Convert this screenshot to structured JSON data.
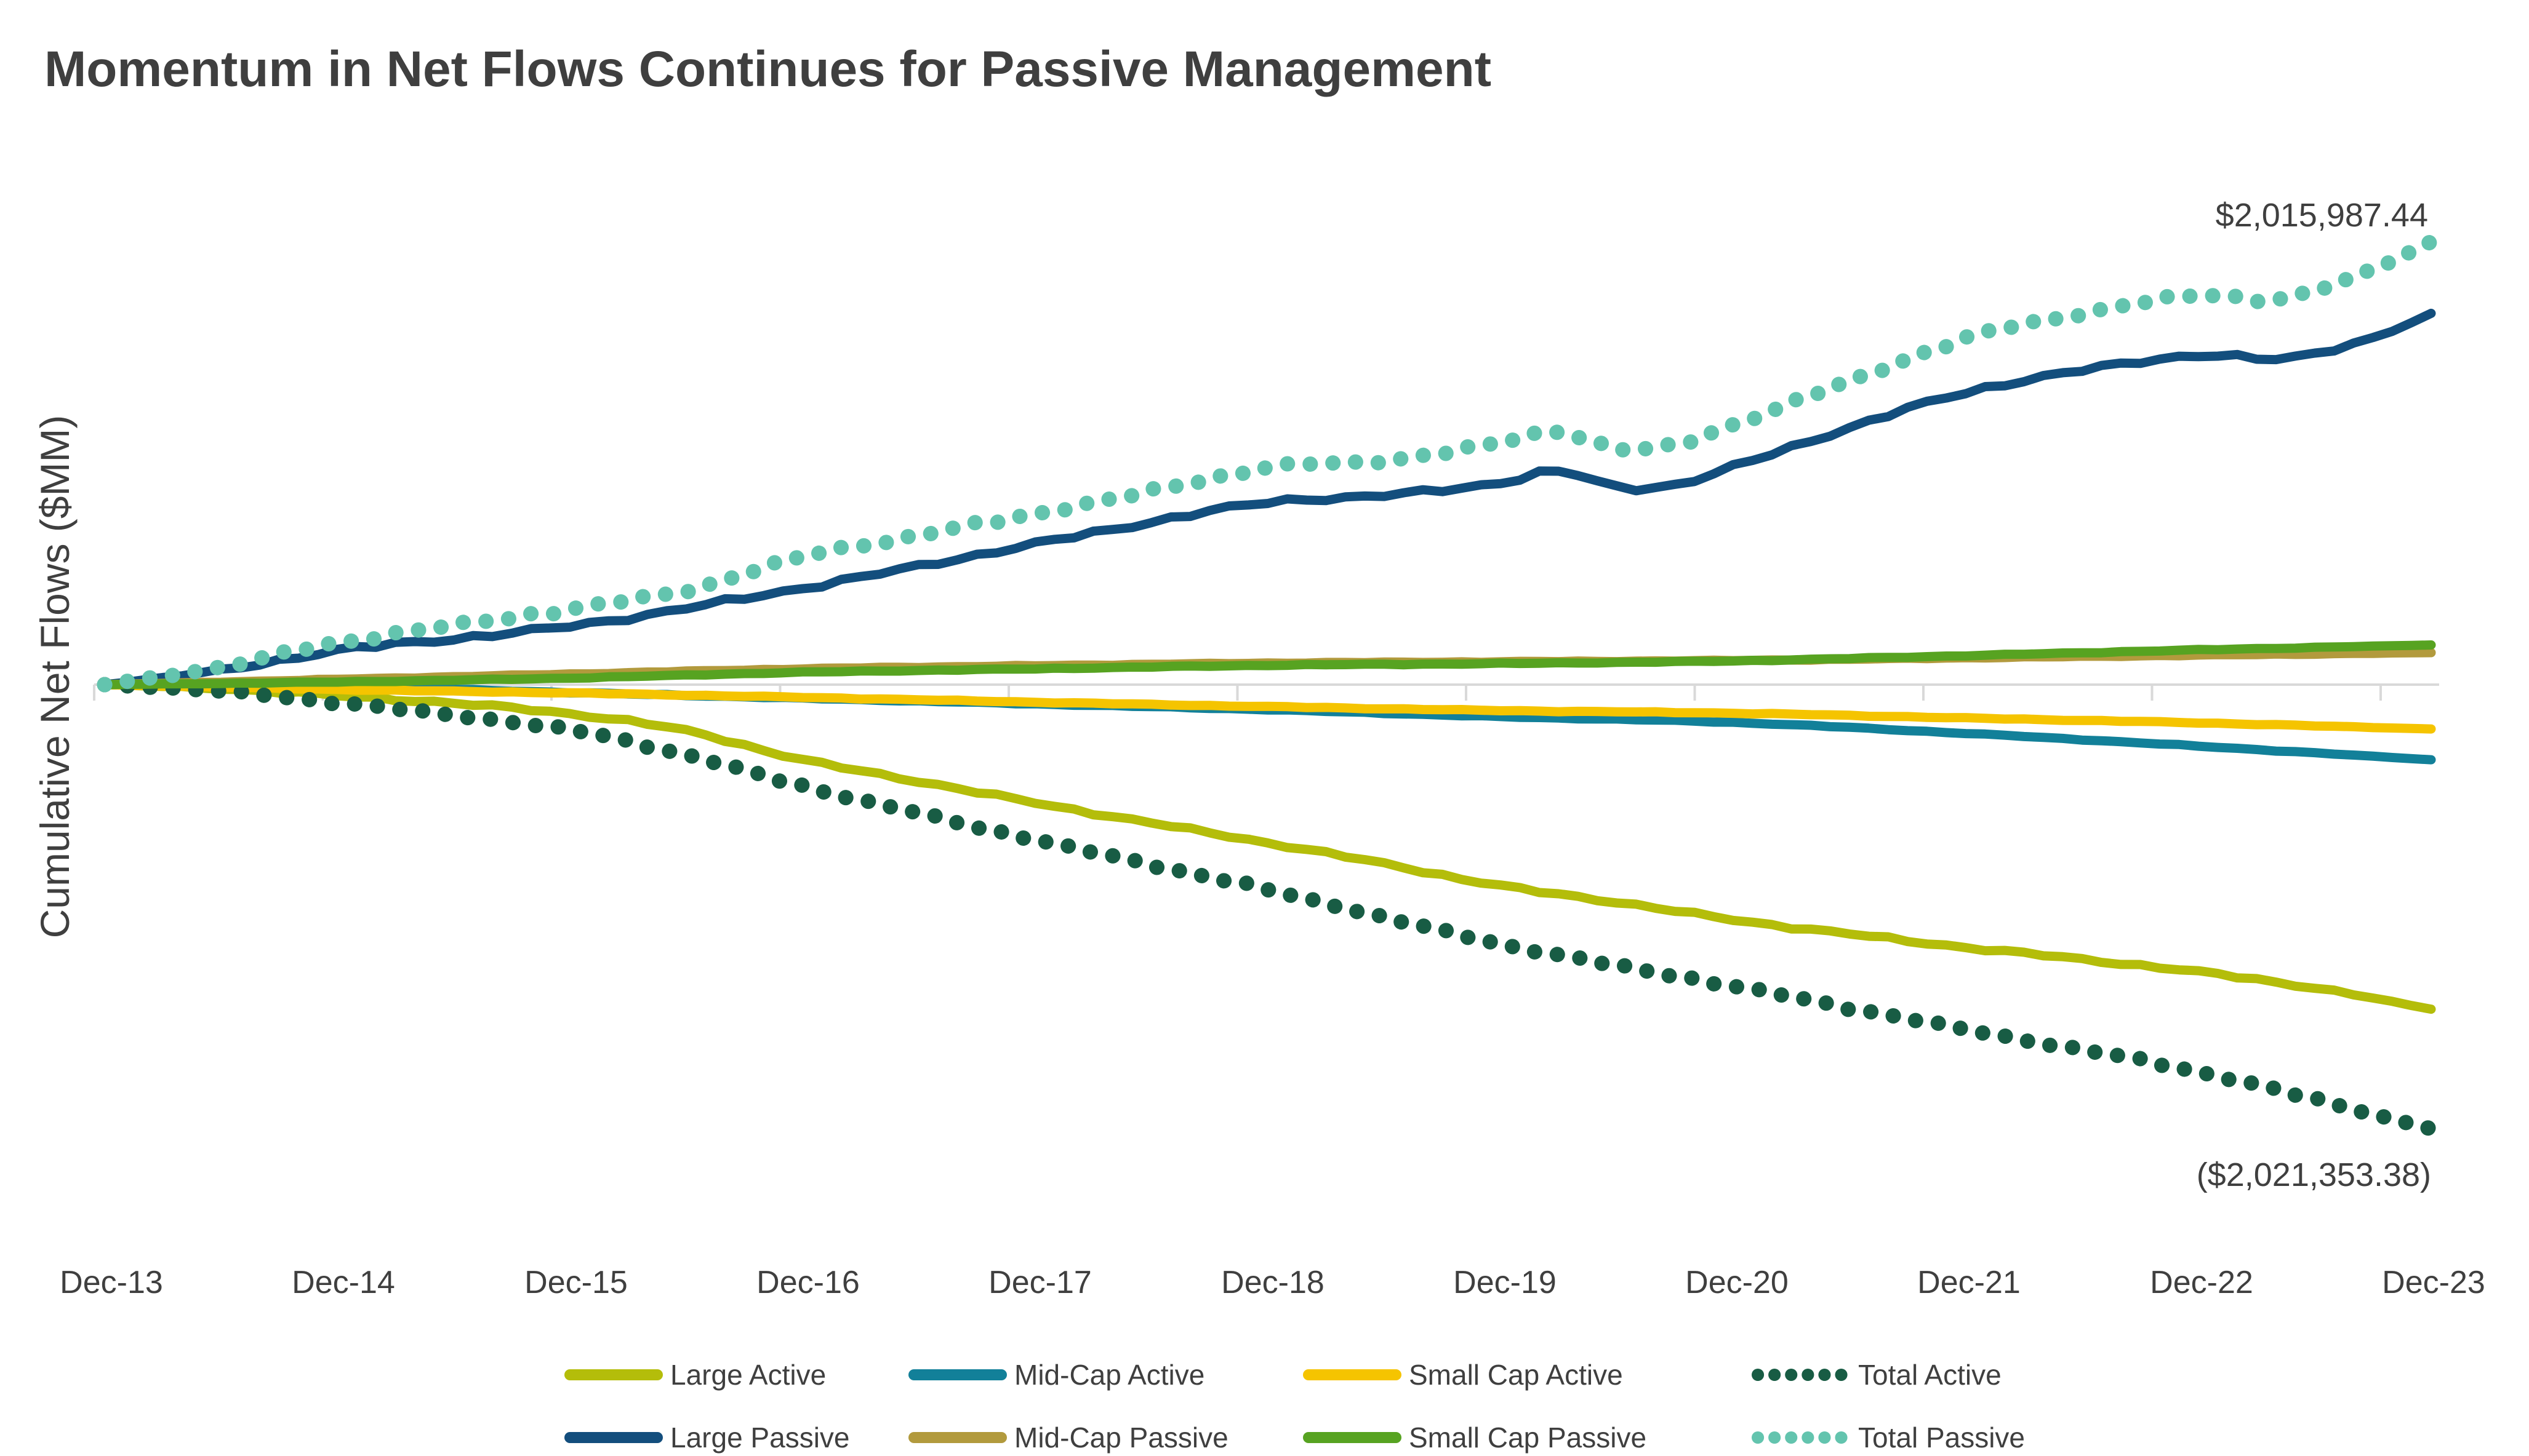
{
  "title": "Momentum in Net Flows Continues for Passive Management",
  "y_axis_label": "Cumulative Net Flows ($MM)",
  "chart_data": {
    "type": "line",
    "title": "Momentum in Net Flows Continues for Passive Management",
    "ylabel": "Cumulative Net Flows ($MM)",
    "xlabel": "",
    "x_unit": "months since Dec-13",
    "x_tick_labels": [
      "Dec-13",
      "Dec-14",
      "Dec-15",
      "Dec-16",
      "Dec-17",
      "Dec-18",
      "Dec-19",
      "Dec-20",
      "Dec-21",
      "Dec-22",
      "Dec-23"
    ],
    "ylim_mm": [
      -2250000,
      2250000
    ],
    "grid": "zero-line-only",
    "legend_position": "bottom",
    "axis_color": "#d9d9d9",
    "text_color": "#3f3f3f",
    "annotations": {
      "top": "$2,015,987.44",
      "bottom": "($2,021,353.38)"
    },
    "series": [
      {
        "name": "Large Active",
        "color": "#b4bd0a",
        "style": "solid",
        "final_value_mm": -1477353.38,
        "wiggle": 9000,
        "anchors_month_value_mm": [
          [
            0,
            0
          ],
          [
            6,
            -18000
          ],
          [
            12,
            -50000
          ],
          [
            18,
            -85000
          ],
          [
            24,
            -132000
          ],
          [
            30,
            -210000
          ],
          [
            36,
            -342000
          ],
          [
            42,
            -440000
          ],
          [
            48,
            -538000
          ],
          [
            54,
            -630000
          ],
          [
            60,
            -720000
          ],
          [
            66,
            -815000
          ],
          [
            72,
            -916000
          ],
          [
            78,
            -990000
          ],
          [
            84,
            -1070000
          ],
          [
            90,
            -1135000
          ],
          [
            96,
            -1196000
          ],
          [
            102,
            -1250000
          ],
          [
            108,
            -1308000
          ],
          [
            114,
            -1380000
          ],
          [
            120,
            -1477353.38
          ]
        ]
      },
      {
        "name": "Mid-Cap Active",
        "color": "#128099",
        "style": "solid",
        "final_value_mm": -342000,
        "wiggle": 2500,
        "anchors_month_value_mm": [
          [
            0,
            0
          ],
          [
            12,
            -10000
          ],
          [
            24,
            -36000
          ],
          [
            36,
            -62000
          ],
          [
            48,
            -88000
          ],
          [
            60,
            -114000
          ],
          [
            72,
            -146000
          ],
          [
            84,
            -172000
          ],
          [
            96,
            -222000
          ],
          [
            108,
            -280000
          ],
          [
            120,
            -342000
          ]
        ]
      },
      {
        "name": "Small Cap Active",
        "color": "#f5c400",
        "style": "solid",
        "final_value_mm": -202000,
        "wiggle": 2500,
        "anchors_month_value_mm": [
          [
            0,
            0
          ],
          [
            12,
            -22000
          ],
          [
            24,
            -38000
          ],
          [
            36,
            -58000
          ],
          [
            48,
            -80000
          ],
          [
            60,
            -100000
          ],
          [
            72,
            -118000
          ],
          [
            84,
            -130000
          ],
          [
            96,
            -152000
          ],
          [
            108,
            -174000
          ],
          [
            120,
            -202000
          ]
        ]
      },
      {
        "name": "Total Active",
        "color": "#185c44",
        "style": "dotted",
        "final_value_mm": -2021353.38,
        "wiggle": 10000,
        "anchors_month_value_mm": [
          [
            0,
            0
          ],
          [
            6,
            -30000
          ],
          [
            12,
            -82000
          ],
          [
            24,
            -206000
          ],
          [
            30,
            -320000
          ],
          [
            36,
            -462000
          ],
          [
            48,
            -706000
          ],
          [
            60,
            -934000
          ],
          [
            72,
            -1180000
          ],
          [
            84,
            -1372000
          ],
          [
            96,
            -1570000
          ],
          [
            108,
            -1762000
          ],
          [
            120,
            -2021353.38
          ]
        ]
      },
      {
        "name": "Large Passive",
        "color": "#134e7d",
        "style": "solid",
        "final_value_mm": 1689987.44,
        "wiggle": 14000,
        "anchors_month_value_mm": [
          [
            0,
            0
          ],
          [
            6,
            65000
          ],
          [
            12,
            155000
          ],
          [
            24,
            266000
          ],
          [
            36,
            440000
          ],
          [
            48,
            640000
          ],
          [
            60,
            830000
          ],
          [
            66,
            860000
          ],
          [
            72,
            920000
          ],
          [
            75,
            970000
          ],
          [
            78,
            900000
          ],
          [
            81,
            910000
          ],
          [
            84,
            990000
          ],
          [
            90,
            1170000
          ],
          [
            96,
            1330000
          ],
          [
            102,
            1430000
          ],
          [
            108,
            1500000
          ],
          [
            112,
            1480000
          ],
          [
            115,
            1530000
          ],
          [
            118,
            1610000
          ],
          [
            120,
            1689987.44
          ]
        ]
      },
      {
        "name": "Mid-Cap Passive",
        "color": "#b29a3d",
        "style": "solid",
        "final_value_mm": 145500,
        "wiggle": 2500,
        "anchors_month_value_mm": [
          [
            0,
            0
          ],
          [
            12,
            24000
          ],
          [
            24,
            48000
          ],
          [
            36,
            72000
          ],
          [
            48,
            86000
          ],
          [
            60,
            98000
          ],
          [
            72,
            104000
          ],
          [
            84,
            110000
          ],
          [
            96,
            122000
          ],
          [
            108,
            134000
          ],
          [
            120,
            145500
          ]
        ]
      },
      {
        "name": "Small Cap Passive",
        "color": "#57a321",
        "style": "solid",
        "final_value_mm": 180500,
        "wiggle": 2500,
        "anchors_month_value_mm": [
          [
            0,
            0
          ],
          [
            12,
            12000
          ],
          [
            24,
            30000
          ],
          [
            36,
            56000
          ],
          [
            48,
            72000
          ],
          [
            60,
            88000
          ],
          [
            72,
            96000
          ],
          [
            84,
            108000
          ],
          [
            96,
            132000
          ],
          [
            108,
            158000
          ],
          [
            120,
            180500
          ]
        ]
      },
      {
        "name": "Total Passive",
        "color": "#63c4ae",
        "style": "dotted",
        "final_value_mm": 2015987.44,
        "wiggle": 14000,
        "anchors_month_value_mm": [
          [
            0,
            0
          ],
          [
            6,
            80000
          ],
          [
            12,
            191000
          ],
          [
            24,
            344000
          ],
          [
            30,
            430000
          ],
          [
            36,
            582000
          ],
          [
            42,
            680000
          ],
          [
            48,
            778000
          ],
          [
            54,
            880000
          ],
          [
            60,
            988000
          ],
          [
            66,
            1020000
          ],
          [
            72,
            1100000
          ],
          [
            75,
            1156000
          ],
          [
            78,
            1072000
          ],
          [
            81,
            1090000
          ],
          [
            84,
            1184000
          ],
          [
            90,
            1380000
          ],
          [
            96,
            1576000
          ],
          [
            102,
            1690000
          ],
          [
            108,
            1772000
          ],
          [
            112,
            1755000
          ],
          [
            115,
            1820000
          ],
          [
            118,
            1930000
          ],
          [
            120,
            2015987.44
          ]
        ]
      }
    ],
    "legend": {
      "rows": [
        [
          "Large Active",
          "Mid-Cap Active",
          "Small Cap Active",
          "Total Active"
        ],
        [
          "Large Passive",
          "Mid-Cap Passive",
          "Small Cap Passive",
          "Total Passive"
        ]
      ]
    }
  }
}
